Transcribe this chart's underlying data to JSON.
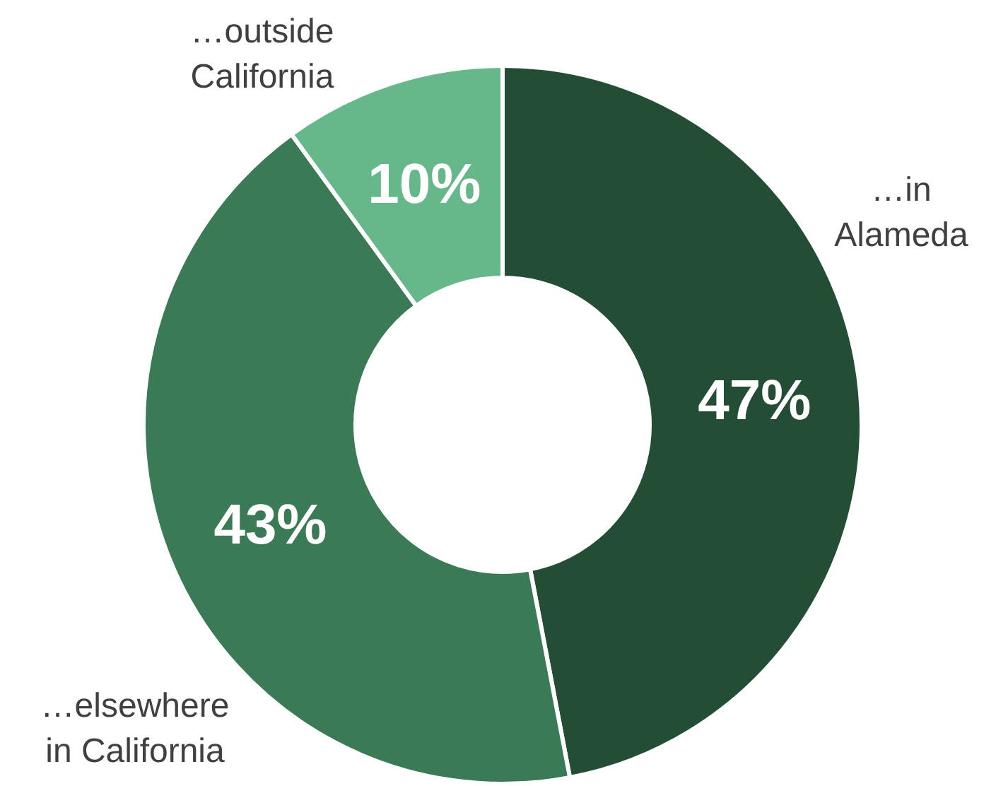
{
  "chart_data": {
    "type": "donut",
    "categories": [
      "…in\nAlameda",
      "…elsewhere\nin California",
      "…outside\nCalifornia"
    ],
    "values": [
      47,
      43,
      10
    ],
    "colors": [
      "#234d35",
      "#3a7a55",
      "#66b88a"
    ],
    "value_labels": [
      "47%",
      "43%",
      "10%"
    ]
  }
}
